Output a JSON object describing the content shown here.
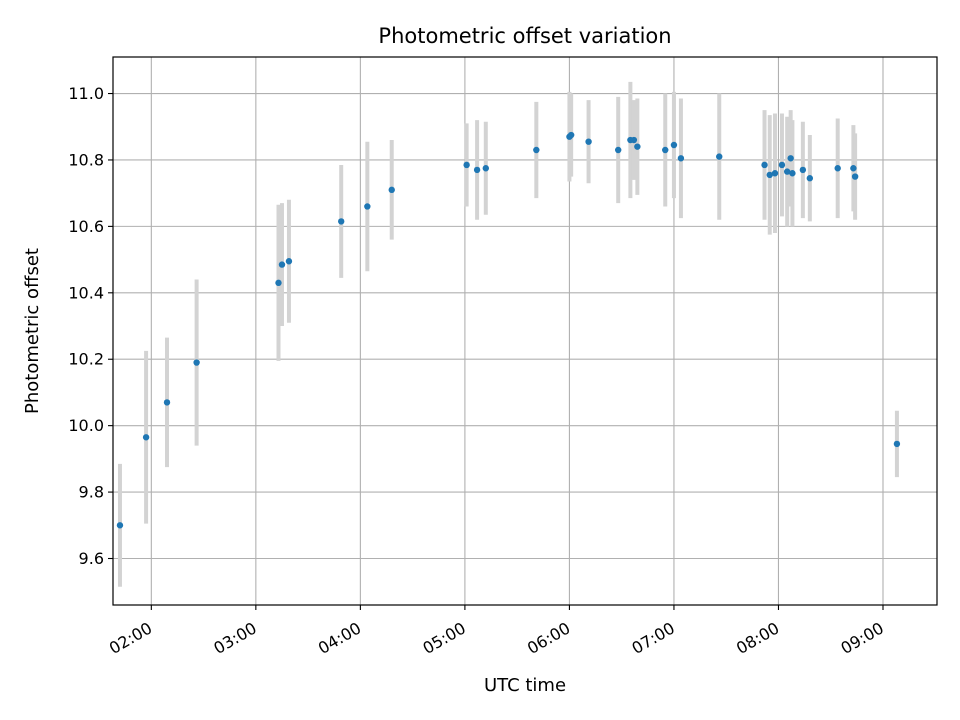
{
  "chart_data": {
    "type": "scatter",
    "title": "Photometric offset variation",
    "xlabel": "UTC time",
    "ylabel": "Photometric offset",
    "x_ticks": [
      "02:00",
      "03:00",
      "04:00",
      "05:00",
      "06:00",
      "07:00",
      "08:00",
      "09:00"
    ],
    "y_ticks": [
      "9.6",
      "9.8",
      "10.0",
      "10.2",
      "10.4",
      "10.6",
      "10.8",
      "11.0"
    ],
    "xlim": [
      "01:38",
      "09:31"
    ],
    "ylim": [
      9.46,
      11.11
    ],
    "grid": true,
    "marker_color": "#1f77b4",
    "errorbar_color": "#d3d3d3",
    "points": [
      {
        "t": "01:42",
        "y": 9.7,
        "err": 0.185
      },
      {
        "t": "01:57",
        "y": 9.965,
        "err": 0.26
      },
      {
        "t": "02:09",
        "y": 10.07,
        "err": 0.195
      },
      {
        "t": "02:26",
        "y": 10.19,
        "err": 0.25
      },
      {
        "t": "03:13",
        "y": 10.43,
        "err": 0.235
      },
      {
        "t": "03:15",
        "y": 10.485,
        "err": 0.185
      },
      {
        "t": "03:19",
        "y": 10.495,
        "err": 0.185
      },
      {
        "t": "03:49",
        "y": 10.615,
        "err": 0.17
      },
      {
        "t": "04:04",
        "y": 10.66,
        "err": 0.195
      },
      {
        "t": "04:18",
        "y": 10.71,
        "err": 0.15
      },
      {
        "t": "05:01",
        "y": 10.785,
        "err": 0.125
      },
      {
        "t": "05:07",
        "y": 10.77,
        "err": 0.15
      },
      {
        "t": "05:12",
        "y": 10.775,
        "err": 0.14
      },
      {
        "t": "05:41",
        "y": 10.83,
        "err": 0.145
      },
      {
        "t": "06:00",
        "y": 10.87,
        "err": 0.135
      },
      {
        "t": "06:01",
        "y": 10.875,
        "err": 0.125
      },
      {
        "t": "06:11",
        "y": 10.855,
        "err": 0.125
      },
      {
        "t": "06:28",
        "y": 10.83,
        "err": 0.16
      },
      {
        "t": "06:35",
        "y": 10.86,
        "err": 0.175
      },
      {
        "t": "06:37",
        "y": 10.86,
        "err": 0.12
      },
      {
        "t": "06:39",
        "y": 10.84,
        "err": 0.145
      },
      {
        "t": "06:55",
        "y": 10.83,
        "err": 0.17
      },
      {
        "t": "07:00",
        "y": 10.845,
        "err": 0.16
      },
      {
        "t": "07:04",
        "y": 10.805,
        "err": 0.18
      },
      {
        "t": "07:26",
        "y": 10.81,
        "err": 0.19
      },
      {
        "t": "07:52",
        "y": 10.785,
        "err": 0.165
      },
      {
        "t": "07:55",
        "y": 10.755,
        "err": 0.18
      },
      {
        "t": "07:58",
        "y": 10.76,
        "err": 0.18
      },
      {
        "t": "08:02",
        "y": 10.785,
        "err": 0.155
      },
      {
        "t": "08:05",
        "y": 10.765,
        "err": 0.165
      },
      {
        "t": "08:07",
        "y": 10.805,
        "err": 0.145
      },
      {
        "t": "08:08",
        "y": 10.76,
        "err": 0.16
      },
      {
        "t": "08:14",
        "y": 10.77,
        "err": 0.145
      },
      {
        "t": "08:18",
        "y": 10.745,
        "err": 0.13
      },
      {
        "t": "08:34",
        "y": 10.775,
        "err": 0.15
      },
      {
        "t": "08:43",
        "y": 10.775,
        "err": 0.13
      },
      {
        "t": "08:44",
        "y": 10.75,
        "err": 0.13
      },
      {
        "t": "09:08",
        "y": 9.945,
        "err": 0.1
      }
    ]
  }
}
